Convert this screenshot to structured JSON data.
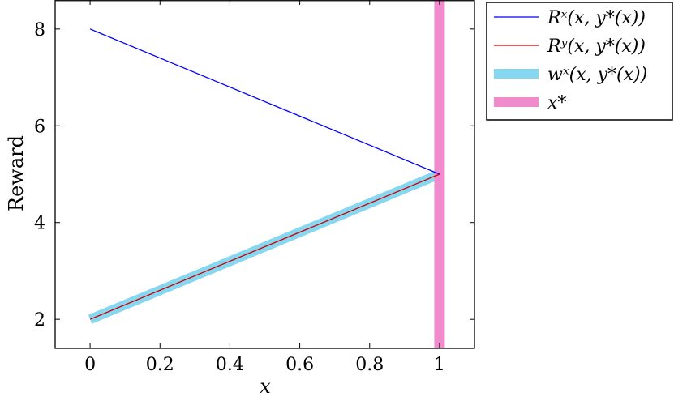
{
  "chart_data": {
    "type": "line",
    "xlabel": "x",
    "ylabel": "Reward",
    "xlim": [
      -0.1,
      1.1
    ],
    "ylim": [
      1.4,
      8.6
    ],
    "xticks": [
      0,
      0.2,
      0.4,
      0.6,
      0.8,
      1
    ],
    "xtick_labels": [
      "0",
      "0.2",
      "0.4",
      "0.6",
      "0.8",
      "1"
    ],
    "yticks": [
      2,
      4,
      6,
      8
    ],
    "ytick_labels": [
      "2",
      "4",
      "6",
      "8"
    ],
    "grid": false,
    "legend_placement": "outside-right-top",
    "series": [
      {
        "name": "Rˣ(x, y*(x))",
        "color": "#0000ff",
        "style": "thin-line",
        "x": [
          0,
          1
        ],
        "y": [
          8,
          5
        ]
      },
      {
        "name": "Rʸ(x, y*(x))",
        "color": "#cc0000",
        "style": "thin-line",
        "x": [
          0,
          1
        ],
        "y": [
          2,
          5
        ]
      },
      {
        "name": "wˣ(x, y*(x))",
        "color": "#87d7f0",
        "style": "thick-band",
        "x": [
          0,
          1
        ],
        "y": [
          2,
          5
        ]
      },
      {
        "name": "x*",
        "color": "#f08ccc",
        "style": "vertical-band",
        "x": [
          1,
          1
        ],
        "y": [
          1.4,
          8.6
        ]
      }
    ]
  }
}
